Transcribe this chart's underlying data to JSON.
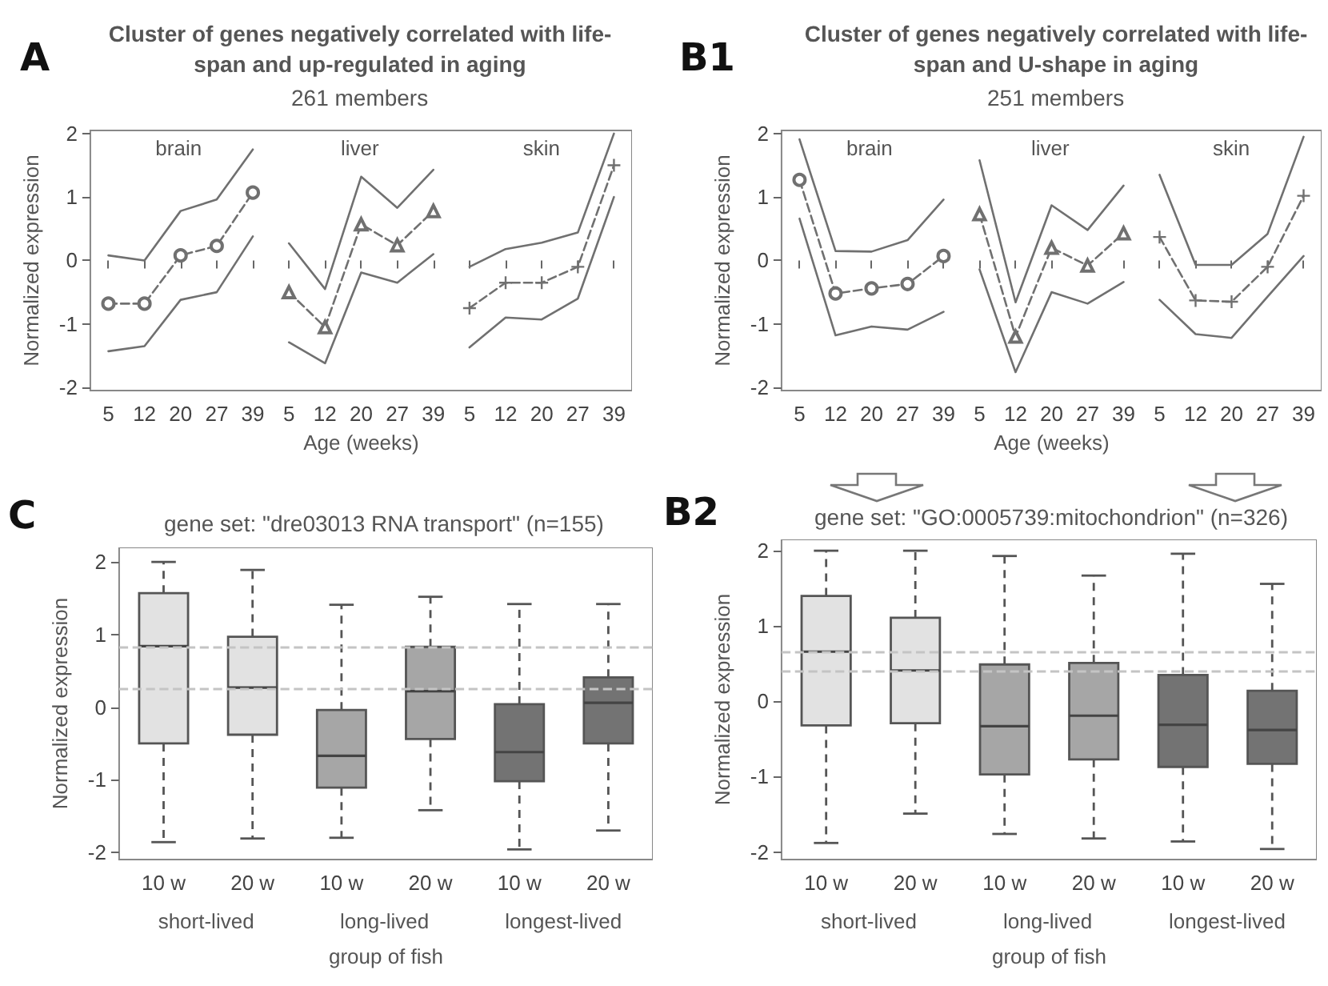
{
  "chart_data": [
    {
      "type": "line",
      "title": "Cluster of genes negatively correlated with life-span and up-regulated in aging",
      "subtitle": "261 members",
      "ylabel": "Normalized expression",
      "xlabel": "Age (weeks)",
      "annotations": [
        "A",
        "brain",
        "liver",
        "skin"
      ],
      "categories": [
        "5",
        "12",
        "20",
        "27",
        "39",
        "5",
        "12",
        "20",
        "27",
        "39",
        "5",
        "12",
        "20",
        "27",
        "39"
      ],
      "ylim": [
        -2.05,
        2.05
      ],
      "yticks": [
        -2,
        -1,
        0,
        1,
        2
      ],
      "series": [
        {
          "color": "#707070",
          "values": [
            0.08,
            0.0,
            0.78,
            0.96,
            1.75,
            null,
            null,
            null,
            null,
            null,
            null,
            null,
            null,
            null,
            null
          ]
        },
        {
          "color": "#707070",
          "values": [
            -0.68,
            -0.68,
            0.08,
            0.23,
            1.07,
            null,
            null,
            null,
            null,
            null,
            null,
            null,
            null,
            null,
            null
          ],
          "line_style": "dashed",
          "marker": "circle"
        },
        {
          "color": "#707070",
          "values": [
            -1.43,
            -1.35,
            -0.62,
            -0.5,
            0.38,
            null,
            null,
            null,
            null,
            null,
            null,
            null,
            null,
            null,
            null
          ]
        },
        {
          "color": "#707070",
          "values": [
            null,
            null,
            null,
            null,
            null,
            0.27,
            -0.45,
            1.32,
            0.83,
            1.43,
            null,
            null,
            null,
            null,
            null
          ]
        },
        {
          "color": "#707070",
          "values": [
            null,
            null,
            null,
            null,
            null,
            -0.5,
            -1.05,
            0.57,
            0.24,
            0.78,
            null,
            null,
            null,
            null,
            null
          ],
          "line_style": "dashed",
          "marker": "triangle"
        },
        {
          "color": "#707070",
          "values": [
            null,
            null,
            null,
            null,
            null,
            -1.29,
            -1.62,
            -0.19,
            -0.35,
            0.1,
            null,
            null,
            null,
            null,
            null
          ]
        },
        {
          "color": "#707070",
          "values": [
            null,
            null,
            null,
            null,
            null,
            null,
            null,
            null,
            null,
            null,
            -0.1,
            0.18,
            0.28,
            0.44,
            2.0
          ]
        },
        {
          "color": "#707070",
          "values": [
            null,
            null,
            null,
            null,
            null,
            null,
            null,
            null,
            null,
            null,
            -0.75,
            -0.35,
            -0.35,
            -0.1,
            1.5
          ],
          "line_style": "dashed",
          "marker": "cross"
        },
        {
          "color": "#707070",
          "values": [
            null,
            null,
            null,
            null,
            null,
            null,
            null,
            null,
            null,
            null,
            -1.37,
            -0.9,
            -0.93,
            -0.6,
            1.0
          ]
        }
      ]
    },
    {
      "type": "line",
      "title": "Cluster of genes negatively correlated with life-span and U-shape in aging",
      "subtitle": "251 members",
      "ylabel": "Normalized expression",
      "xlabel": "Age (weeks)",
      "annotations": [
        "B1",
        "brain",
        "liver",
        "skin"
      ],
      "categories": [
        "5",
        "12",
        "20",
        "27",
        "39",
        "5",
        "12",
        "20",
        "27",
        "39",
        "5",
        "12",
        "20",
        "27",
        "39"
      ],
      "ylim": [
        -2.05,
        2.05
      ],
      "yticks": [
        -2,
        -1,
        0,
        1,
        2
      ],
      "series": [
        {
          "color": "#707070",
          "values": [
            1.91,
            0.15,
            0.14,
            0.32,
            0.96,
            null,
            null,
            null,
            null,
            null,
            null,
            null,
            null,
            null,
            null
          ]
        },
        {
          "color": "#707070",
          "values": [
            1.27,
            -0.52,
            -0.44,
            -0.37,
            0.07,
            null,
            null,
            null,
            null,
            null,
            null,
            null,
            null,
            null,
            null
          ],
          "line_style": "dashed",
          "marker": "circle"
        },
        {
          "color": "#707070",
          "values": [
            0.66,
            -1.18,
            -1.04,
            -1.09,
            -0.81,
            null,
            null,
            null,
            null,
            null,
            null,
            null,
            null,
            null,
            null
          ]
        },
        {
          "color": "#707070",
          "values": [
            null,
            null,
            null,
            null,
            null,
            1.58,
            -0.66,
            0.87,
            0.48,
            1.18,
            null,
            null,
            null,
            null,
            null
          ]
        },
        {
          "color": "#707070",
          "values": [
            null,
            null,
            null,
            null,
            null,
            0.73,
            -1.2,
            0.2,
            -0.08,
            0.43,
            null,
            null,
            null,
            null,
            null
          ],
          "line_style": "dashed",
          "marker": "triangle"
        },
        {
          "color": "#707070",
          "values": [
            null,
            null,
            null,
            null,
            null,
            -0.14,
            -1.76,
            -0.5,
            -0.68,
            -0.34,
            null,
            null,
            null,
            null,
            null
          ]
        },
        {
          "color": "#707070",
          "values": [
            null,
            null,
            null,
            null,
            null,
            null,
            null,
            null,
            null,
            null,
            1.35,
            -0.07,
            -0.07,
            0.42,
            1.95
          ]
        },
        {
          "color": "#707070",
          "values": [
            null,
            null,
            null,
            null,
            null,
            null,
            null,
            null,
            null,
            null,
            0.37,
            -0.63,
            -0.65,
            -0.1,
            1.02
          ],
          "line_style": "dashed",
          "marker": "cross"
        },
        {
          "color": "#707070",
          "values": [
            null,
            null,
            null,
            null,
            null,
            null,
            null,
            null,
            null,
            null,
            -0.62,
            -1.16,
            -1.22,
            -0.57,
            0.07
          ]
        }
      ]
    },
    {
      "type": "box",
      "title": "gene set: \"dre03013 RNA transport\" (n=155)",
      "ylabel": "Normalized expression",
      "xlabel": "group of fish",
      "annotations": [
        "C",
        "short-lived",
        "long-lived",
        "longest-lived"
      ],
      "categories": [
        "10 w",
        "20 w",
        "10 w",
        "20 w",
        "10 w",
        "20 w"
      ],
      "ylim": [
        -2.1,
        2.2
      ],
      "yticks": [
        -2,
        -1,
        0,
        1,
        2
      ],
      "colors": [
        "#e2e2e2",
        "#e2e2e2",
        "#a6a6a6",
        "#a6a6a6",
        "#737373",
        "#737373"
      ],
      "boxes": [
        {
          "low": -1.86,
          "q1": -0.5,
          "median": 0.84,
          "q3": 1.57,
          "high": 2.0
        },
        {
          "low": -1.81,
          "q1": -0.38,
          "median": 0.27,
          "q3": 0.97,
          "high": 1.89
        },
        {
          "low": -1.8,
          "q1": -1.11,
          "median": -0.67,
          "q3": -0.04,
          "high": 1.41
        },
        {
          "low": -1.42,
          "q1": -0.44,
          "median": 0.22,
          "q3": 0.83,
          "high": 1.52
        },
        {
          "low": -1.96,
          "q1": -1.02,
          "median": -0.62,
          "q3": 0.04,
          "high": 1.42
        },
        {
          "low": -1.7,
          "q1": -0.5,
          "median": 0.06,
          "q3": 0.41,
          "high": 1.42
        }
      ],
      "ref_lines": [
        {
          "axis": "y",
          "value": 0.83,
          "color": "#c4c4c4",
          "line_style": "dashed"
        },
        {
          "axis": "y",
          "value": 0.26,
          "color": "#c4c4c4",
          "line_style": "dashed"
        }
      ]
    },
    {
      "type": "box",
      "title": "gene set: \"GO:0005739:mitochondrion\" (n=326)",
      "ylabel": "Normalized expression",
      "xlabel": "group of fish",
      "annotations": [
        "B2",
        "short-lived",
        "long-lived",
        "longest-lived"
      ],
      "categories": [
        "10 w",
        "20 w",
        "10 w",
        "20 w",
        "10 w",
        "20 w"
      ],
      "ylim": [
        -2.1,
        2.15
      ],
      "yticks": [
        -2,
        -1,
        0,
        1,
        2
      ],
      "colors": [
        "#e2e2e2",
        "#e2e2e2",
        "#a6a6a6",
        "#a6a6a6",
        "#737373",
        "#737373"
      ],
      "boxes": [
        {
          "low": -1.88,
          "q1": -0.32,
          "median": 0.66,
          "q3": 1.4,
          "high": 2.0
        },
        {
          "low": -1.49,
          "q1": -0.29,
          "median": 0.41,
          "q3": 1.11,
          "high": 2.0
        },
        {
          "low": -1.76,
          "q1": -0.97,
          "median": -0.33,
          "q3": 0.49,
          "high": 1.93
        },
        {
          "low": -1.82,
          "q1": -0.77,
          "median": -0.19,
          "q3": 0.51,
          "high": 1.67
        },
        {
          "low": -1.86,
          "q1": -0.87,
          "median": -0.31,
          "q3": 0.35,
          "high": 1.96
        },
        {
          "low": -1.96,
          "q1": -0.83,
          "median": -0.38,
          "q3": 0.14,
          "high": 1.56
        }
      ],
      "ref_lines": [
        {
          "axis": "y",
          "value": 0.66,
          "color": "#c4c4c4",
          "line_style": "dashed"
        },
        {
          "axis": "y",
          "value": 0.41,
          "color": "#c4c4c4",
          "line_style": "dashed"
        }
      ]
    }
  ]
}
